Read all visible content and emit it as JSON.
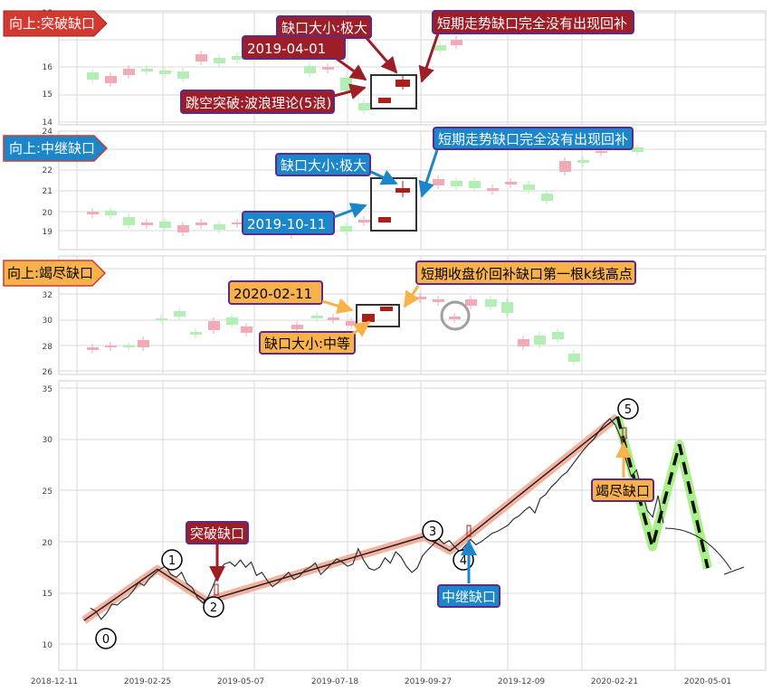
{
  "colors": {
    "up_candle": "#f3aab7",
    "down_candle": "#b3efb5",
    "gap_candle": "#a8201a",
    "grid": "#d9d9d9",
    "callout_red": "#9e1e28",
    "callout_blue": "#1b86c9",
    "callout_orange": "#f9b24a",
    "callout_border": "#5b2a8c",
    "wave_highlight": "#f4a58f",
    "proj_highlight": "#aaf08a"
  },
  "panels": [
    {
      "tag": "向上:突破缺口",
      "tag_color": "#d23a31",
      "yticks": [
        "14",
        "15",
        "16",
        "18"
      ],
      "gap_date": "2019-04-01",
      "gap_size": "缺口大小:极大",
      "note": "短期走势缺口完全没有出现回补",
      "wave_note": "跳空突破:波浪理论(5浪)"
    },
    {
      "tag": "向上:中继缺口",
      "tag_color": "#1b86c9",
      "yticks": [
        "19",
        "20",
        "21",
        "22",
        "24"
      ],
      "gap_date": "2019-10-11",
      "gap_size": "缺口大小:极大",
      "note": "短期走势缺口完全没有出现回补"
    },
    {
      "tag": "向上:竭尽缺口",
      "tag_color": "#f9b24a",
      "yticks": [
        "26",
        "28",
        "30",
        "32"
      ],
      "gap_date": "2020-02-11",
      "gap_size": "缺口大小:中等",
      "note": "短期收盘价回补缺口第一根k线高点"
    }
  ],
  "main": {
    "yticks": [
      "10",
      "15",
      "20",
      "25",
      "30",
      "35"
    ],
    "xticks": [
      "2018-12-11",
      "2019-02-25",
      "2019-05-07",
      "2019-07-18",
      "2019-09-27",
      "2019-12-09",
      "2020-02-21",
      "2020-05-01"
    ],
    "wave_labels": [
      "0",
      "1",
      "2",
      "3",
      "4",
      "5"
    ],
    "breakout_label": "突破缺口",
    "continuation_label": "中继缺口",
    "exhaustion_label": "竭尽缺口"
  },
  "chart_data": {
    "type": "line",
    "series": [
      {
        "values": [
          13.5,
          13.2,
          12.4,
          13.0,
          13.9,
          13.8,
          14.3,
          14.6,
          15.2,
          16.0,
          15.7,
          16.4,
          16.9,
          17.3,
          17.6,
          16.8,
          16.5,
          17.0,
          15.9,
          15.5,
          14.5,
          14.0,
          14.6,
          15.8,
          17.2,
          17.8,
          18.0,
          17.6,
          18.2,
          17.5,
          18.0,
          16.7,
          17.0,
          16.2,
          15.6,
          16.0,
          16.5,
          17.0,
          16.3,
          16.6,
          17.2,
          17.5,
          17.9,
          16.8,
          17.3,
          17.8,
          18.3,
          18.0,
          17.6,
          17.8,
          19.3,
          18.2,
          17.4,
          17.2,
          17.5,
          18.4,
          17.9,
          19.0,
          18.5,
          17.6,
          17.0,
          17.4,
          18.6,
          19.2,
          19.7,
          20.3,
          19.8,
          20.1,
          19.5,
          19.0,
          19.6,
          20.2,
          19.7,
          20.0,
          20.4,
          20.8,
          21.0,
          21.3,
          21.6,
          22.2,
          22.5,
          23.0,
          23.4,
          22.8,
          24.2,
          24.6,
          25.3,
          25.8,
          26.4,
          26.8,
          27.5,
          28.2,
          28.9,
          29.5,
          30.0,
          30.8,
          31.5,
          32.0,
          31.4,
          30.2,
          28.0,
          26.4,
          27.0,
          25.0,
          23.0,
          22.4,
          24.5,
          21.8
        ]
      }
    ],
    "waves": {
      "labels": [
        "0",
        "1",
        "2",
        "3",
        "4",
        "5"
      ],
      "x": [
        "2019-01-03",
        "2019-03-01",
        "2019-04-08",
        "2019-09-24",
        "2019-10-14",
        "2020-02-21"
      ],
      "y": [
        12.3,
        17.3,
        14.2,
        20.5,
        19.1,
        32.2
      ]
    },
    "projection": {
      "x": [
        "2020-02-21",
        "2020-03-19",
        "2020-04-09",
        "2020-05-01"
      ],
      "y": [
        32.2,
        19.5,
        29.5,
        17.4
      ]
    },
    "xlabel": "",
    "ylabel": "",
    "ylim": [
      8.5,
      35.5
    ],
    "grid": true
  }
}
